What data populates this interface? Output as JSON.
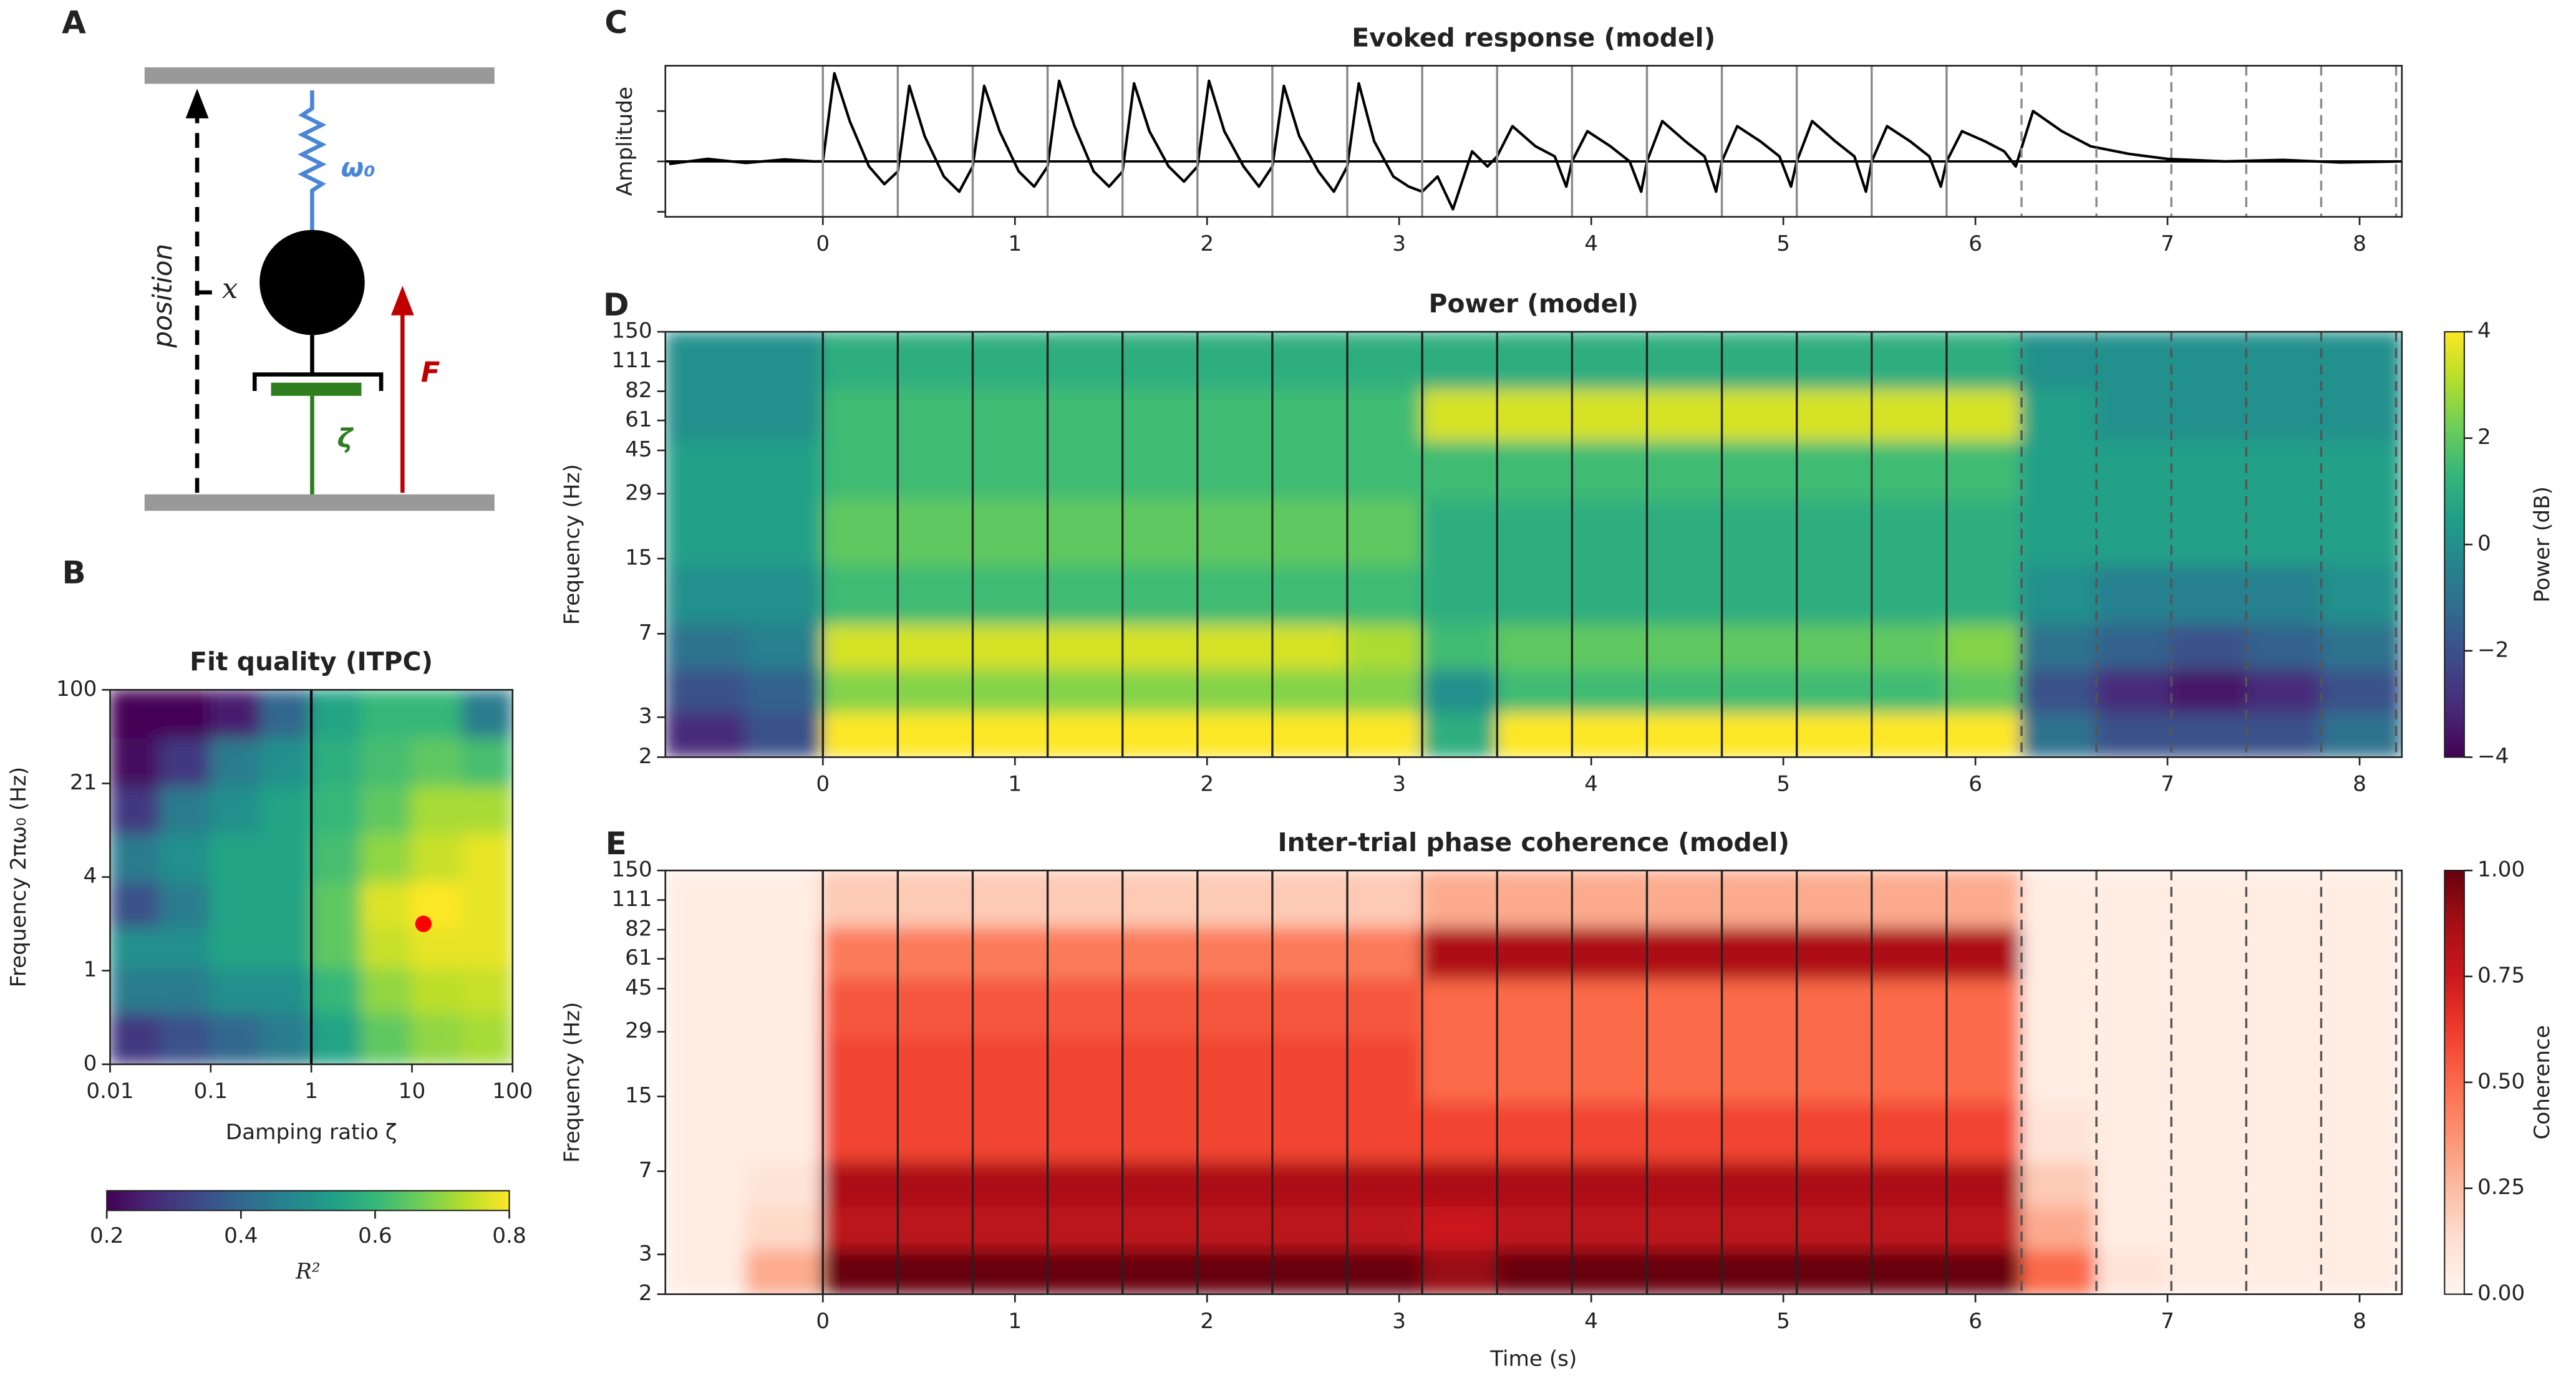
{
  "panel_labels": [
    "A",
    "B",
    "C",
    "D",
    "E"
  ],
  "diagram": {
    "axis_label": "position",
    "state": "x",
    "stiffness": "ω₀",
    "force": "F",
    "damping": "ζ"
  },
  "chart_data": [
    {
      "type": "heatmap",
      "title": "Fit quality (ITPC)",
      "xlabel": "Damping ratio ζ",
      "ylabel": "Frequency 2πω₀ (Hz)",
      "xscale": "log",
      "yscale": "ticks",
      "xlim": [
        0.01,
        100
      ],
      "ylim": [
        0,
        100
      ],
      "xticks": [
        0.01,
        0.1,
        1,
        10,
        100
      ],
      "yticks": [
        0,
        1,
        4,
        21,
        100
      ],
      "x": [
        0.0178,
        0.0562,
        0.178,
        0.562,
        1.78,
        5.62,
        17.8,
        56.2
      ],
      "y": [
        0.3,
        0.8,
        1.8,
        3,
        8,
        16,
        40,
        80
      ],
      "z": [
        [
          0.3,
          0.35,
          0.4,
          0.45,
          0.55,
          0.65,
          0.7,
          0.72
        ],
        [
          0.45,
          0.45,
          0.5,
          0.5,
          0.6,
          0.7,
          0.74,
          0.75
        ],
        [
          0.5,
          0.5,
          0.55,
          0.55,
          0.65,
          0.75,
          0.78,
          0.78
        ],
        [
          0.35,
          0.45,
          0.55,
          0.55,
          0.65,
          0.77,
          0.8,
          0.78
        ],
        [
          0.45,
          0.5,
          0.55,
          0.55,
          0.62,
          0.7,
          0.75,
          0.78
        ],
        [
          0.3,
          0.45,
          0.5,
          0.55,
          0.6,
          0.65,
          0.72,
          0.72
        ],
        [
          0.22,
          0.3,
          0.45,
          0.5,
          0.58,
          0.62,
          0.65,
          0.62
        ],
        [
          0.2,
          0.2,
          0.25,
          0.4,
          0.55,
          0.6,
          0.6,
          0.45
        ]
      ],
      "colormap": "viridis",
      "colorbar": "bottom",
      "zlim": [
        0.2,
        0.8
      ],
      "zticks": [
        0.2,
        0.4,
        0.6,
        0.8
      ],
      "zlabel": "R²",
      "vline": 1,
      "best_fit": {
        "x": 13,
        "y": 2.5,
        "color": "#ff0000"
      }
    },
    {
      "type": "line",
      "title": "Evoked response (model)",
      "ylabel": "Amplitude",
      "color": "#000000",
      "xlim": [
        -0.82,
        8.22
      ],
      "ylim": [
        -1.1,
        1.9
      ],
      "xticks": [
        0,
        1,
        2,
        3,
        4,
        5,
        6,
        7,
        8
      ],
      "yticks": [
        -1,
        0,
        1
      ],
      "hline": 0,
      "stimuli": [
        0,
        0.39,
        0.78,
        1.17,
        1.56,
        1.95,
        2.34,
        2.73,
        3.12,
        3.51,
        3.9,
        4.29,
        4.68,
        5.07,
        5.46,
        5.85
      ],
      "omitted": [
        6.24,
        6.63,
        7.02,
        7.41,
        7.8,
        8.19
      ],
      "x": [
        -0.8,
        -0.6,
        -0.4,
        -0.2,
        -0.05,
        0,
        0.06,
        0.14,
        0.24,
        0.32,
        0.39,
        0.45,
        0.53,
        0.63,
        0.71,
        0.78,
        0.84,
        0.92,
        1.02,
        1.1,
        1.17,
        1.23,
        1.31,
        1.41,
        1.49,
        1.56,
        1.62,
        1.7,
        1.8,
        1.88,
        1.95,
        2.01,
        2.09,
        2.19,
        2.27,
        2.34,
        2.4,
        2.48,
        2.58,
        2.66,
        2.73,
        2.79,
        2.87,
        2.97,
        3.05,
        3.12,
        3.2,
        3.28,
        3.38,
        3.46,
        3.51,
        3.59,
        3.71,
        3.81,
        3.87,
        3.9,
        3.98,
        4.1,
        4.2,
        4.26,
        4.29,
        4.37,
        4.49,
        4.59,
        4.65,
        4.68,
        4.76,
        4.88,
        4.98,
        5.04,
        5.07,
        5.15,
        5.27,
        5.37,
        5.43,
        5.46,
        5.54,
        5.66,
        5.76,
        5.82,
        5.85,
        5.93,
        6.05,
        6.15,
        6.21,
        6.3,
        6.45,
        6.6,
        6.8,
        7,
        7.3,
        7.6,
        7.9,
        8.2
      ],
      "values": [
        -0.05,
        0.05,
        -0.03,
        0.04,
        0,
        0,
        1.75,
        0.8,
        -0.1,
        -0.45,
        -0.2,
        1.5,
        0.5,
        -0.3,
        -0.6,
        -0.1,
        1.5,
        0.6,
        -0.2,
        -0.5,
        -0.1,
        1.6,
        0.7,
        -0.2,
        -0.5,
        -0.2,
        1.55,
        0.6,
        -0.1,
        -0.4,
        -0.1,
        1.6,
        0.6,
        -0.1,
        -0.5,
        -0.1,
        1.5,
        0.5,
        -0.2,
        -0.6,
        -0.1,
        1.55,
        0.4,
        -0.3,
        -0.5,
        -0.6,
        -0.3,
        -0.95,
        0.2,
        -0.1,
        0.1,
        0.7,
        0.3,
        0.1,
        -0.5,
        0,
        0.6,
        0.3,
        0,
        -0.6,
        0,
        0.8,
        0.4,
        0.1,
        -0.6,
        0,
        0.7,
        0.4,
        0.1,
        -0.5,
        0,
        0.8,
        0.4,
        0.1,
        -0.6,
        0,
        0.7,
        0.4,
        0.1,
        -0.5,
        0,
        0.6,
        0.4,
        0.2,
        -0.1,
        1,
        0.6,
        0.3,
        0.15,
        0.05,
        0,
        0.03,
        -0.02,
        0
      ]
    },
    {
      "type": "heatmap",
      "title": "Power (model)",
      "ylabel": "Frequency (Hz)",
      "yscale": "log",
      "xlim": [
        -0.82,
        8.22
      ],
      "ylim": [
        2,
        150
      ],
      "xticks": [
        0,
        1,
        2,
        3,
        4,
        5,
        6,
        7,
        8
      ],
      "yticks": [
        2,
        3,
        7,
        15,
        29,
        45,
        61,
        82,
        111,
        150
      ],
      "stimuli": [
        0,
        0.39,
        0.78,
        1.17,
        1.56,
        1.95,
        2.34,
        2.73,
        3.12,
        3.51,
        3.9,
        4.29,
        4.68,
        5.07,
        5.46,
        5.85
      ],
      "omitted": [
        6.24,
        6.63,
        7.02,
        7.41,
        7.8,
        8.19
      ],
      "x": [
        -0.6,
        -0.2,
        0.195,
        0.585,
        0.975,
        1.365,
        1.755,
        2.145,
        2.535,
        2.925,
        3.315,
        3.705,
        4.095,
        4.485,
        4.875,
        5.265,
        5.655,
        6.045,
        6.435,
        6.825,
        7.215,
        7.605,
        7.995
      ],
      "y": [
        2.5,
        4,
        6,
        10,
        20,
        38,
        65,
        110
      ],
      "z": [
        [
          -3,
          -2,
          4,
          4,
          4,
          4,
          4,
          4,
          4,
          4,
          1,
          4,
          4,
          4,
          4,
          4,
          4,
          4,
          -1,
          -2,
          -2,
          -2,
          -1
        ],
        [
          -2,
          -1.5,
          2.5,
          2.5,
          2.5,
          2.5,
          2.5,
          2.5,
          2.5,
          2.5,
          0,
          1.5,
          1.5,
          1.5,
          1.5,
          1.5,
          1.5,
          2,
          -2,
          -3,
          -3.5,
          -3,
          -2
        ],
        [
          -1,
          -0.5,
          3.5,
          3.5,
          3.5,
          3.5,
          3.5,
          3.5,
          3.5,
          3,
          1.5,
          2,
          2,
          2,
          2,
          2,
          2,
          2.5,
          -1,
          -1.5,
          -2,
          -1.5,
          -1
        ],
        [
          0,
          0,
          1.5,
          1.5,
          1.5,
          1.5,
          1.5,
          1.5,
          1.5,
          1.5,
          1,
          1,
          1,
          1,
          1,
          1,
          1,
          1,
          0,
          -0.5,
          -0.5,
          -0.5,
          0
        ],
        [
          0.5,
          0.5,
          2,
          2,
          2,
          2,
          2,
          2,
          2,
          2,
          1,
          1,
          1,
          1,
          1,
          1,
          1,
          1,
          0.5,
          0.5,
          0.5,
          0.5,
          0.5
        ],
        [
          0.5,
          0.5,
          1.5,
          1.5,
          1.5,
          1.5,
          1.5,
          1.5,
          1.5,
          1.5,
          1.5,
          1.5,
          1.5,
          1.5,
          1.5,
          1.5,
          1.5,
          1.5,
          0.5,
          0.5,
          0.5,
          0.5,
          0.5
        ],
        [
          0,
          0,
          1.5,
          1.5,
          1.5,
          1.5,
          1.5,
          1.5,
          1.5,
          1.5,
          3.5,
          3.5,
          3.5,
          3.5,
          3.5,
          3.5,
          3.5,
          3.5,
          0.5,
          0,
          0,
          0,
          0
        ],
        [
          0,
          0,
          1,
          1,
          1,
          1,
          1,
          1,
          1,
          1,
          1,
          1,
          1,
          1,
          1,
          1,
          1,
          1,
          0,
          0,
          0,
          0,
          0
        ]
      ],
      "colormap": "viridis",
      "colorbar": "right",
      "zlim": [
        -4,
        4
      ],
      "zticks": [
        {
          "value": -4,
          "label": "−4"
        },
        {
          "value": -2,
          "label": "−2"
        },
        0,
        2,
        4
      ],
      "zlabel": "Power (dB)"
    },
    {
      "type": "heatmap",
      "title": "Inter-trial phase coherence (model)",
      "xlabel": "Time (s)",
      "ylabel": "Frequency (Hz)",
      "yscale": "log",
      "xlim": [
        -0.82,
        8.22
      ],
      "ylim": [
        2,
        150
      ],
      "xticks": [
        0,
        1,
        2,
        3,
        4,
        5,
        6,
        7,
        8
      ],
      "yticks": [
        2,
        3,
        7,
        15,
        29,
        45,
        61,
        82,
        111,
        150
      ],
      "stimuli": [
        0,
        0.39,
        0.78,
        1.17,
        1.56,
        1.95,
        2.34,
        2.73,
        3.12,
        3.51,
        3.9,
        4.29,
        4.68,
        5.07,
        5.46,
        5.85
      ],
      "omitted": [
        6.24,
        6.63,
        7.02,
        7.41,
        7.8,
        8.19
      ],
      "x": [
        -0.6,
        -0.2,
        0.195,
        0.585,
        0.975,
        1.365,
        1.755,
        2.145,
        2.535,
        2.925,
        3.315,
        3.705,
        4.095,
        4.485,
        4.875,
        5.265,
        5.655,
        6.045,
        6.435,
        6.825,
        7.215,
        7.605,
        7.995
      ],
      "y": [
        2.5,
        4,
        6,
        10,
        20,
        38,
        65,
        110
      ],
      "z": [
        [
          0.05,
          0.3,
          1,
          1,
          1,
          1,
          1,
          1,
          1,
          1,
          0.9,
          1,
          1,
          1,
          1,
          1,
          1,
          1,
          0.5,
          0.1,
          0.05,
          0.05,
          0.05
        ],
        [
          0.05,
          0.15,
          0.8,
          0.8,
          0.8,
          0.8,
          0.8,
          0.8,
          0.8,
          0.8,
          0.75,
          0.8,
          0.8,
          0.8,
          0.8,
          0.8,
          0.8,
          0.8,
          0.3,
          0.05,
          0.05,
          0.05,
          0.05
        ],
        [
          0.05,
          0.1,
          0.85,
          0.85,
          0.85,
          0.85,
          0.85,
          0.85,
          0.85,
          0.85,
          0.85,
          0.85,
          0.85,
          0.85,
          0.85,
          0.85,
          0.85,
          0.85,
          0.2,
          0.05,
          0.05,
          0.05,
          0.05
        ],
        [
          0.05,
          0.05,
          0.6,
          0.6,
          0.6,
          0.6,
          0.6,
          0.6,
          0.6,
          0.6,
          0.6,
          0.6,
          0.6,
          0.6,
          0.6,
          0.6,
          0.6,
          0.6,
          0.1,
          0.05,
          0.05,
          0.05,
          0.05
        ],
        [
          0.05,
          0.05,
          0.6,
          0.6,
          0.6,
          0.6,
          0.6,
          0.6,
          0.6,
          0.6,
          0.5,
          0.5,
          0.5,
          0.5,
          0.5,
          0.5,
          0.5,
          0.5,
          0.05,
          0.05,
          0.05,
          0.05,
          0.05
        ],
        [
          0.05,
          0.05,
          0.55,
          0.55,
          0.55,
          0.55,
          0.55,
          0.55,
          0.55,
          0.55,
          0.5,
          0.5,
          0.5,
          0.5,
          0.5,
          0.5,
          0.5,
          0.5,
          0.05,
          0.05,
          0.05,
          0.05,
          0.05
        ],
        [
          0.05,
          0.05,
          0.45,
          0.45,
          0.45,
          0.45,
          0.45,
          0.45,
          0.45,
          0.45,
          0.85,
          0.85,
          0.85,
          0.85,
          0.85,
          0.85,
          0.85,
          0.85,
          0.05,
          0.05,
          0.05,
          0.05,
          0.05
        ],
        [
          0.05,
          0.05,
          0.2,
          0.2,
          0.2,
          0.2,
          0.2,
          0.2,
          0.2,
          0.2,
          0.3,
          0.3,
          0.3,
          0.3,
          0.3,
          0.3,
          0.3,
          0.3,
          0.05,
          0.05,
          0.05,
          0.05,
          0.05
        ]
      ],
      "colormap": "reds",
      "colorbar": "right",
      "zlim": [
        0,
        1
      ],
      "zticks": [
        {
          "value": 0,
          "label": "0.00"
        },
        {
          "value": 0.25,
          "label": "0.25"
        },
        {
          "value": 0.5,
          "label": "0.50"
        },
        {
          "value": 0.75,
          "label": "0.75"
        },
        {
          "value": 1,
          "label": "1.00"
        }
      ],
      "zlabel": "Coherence"
    }
  ]
}
